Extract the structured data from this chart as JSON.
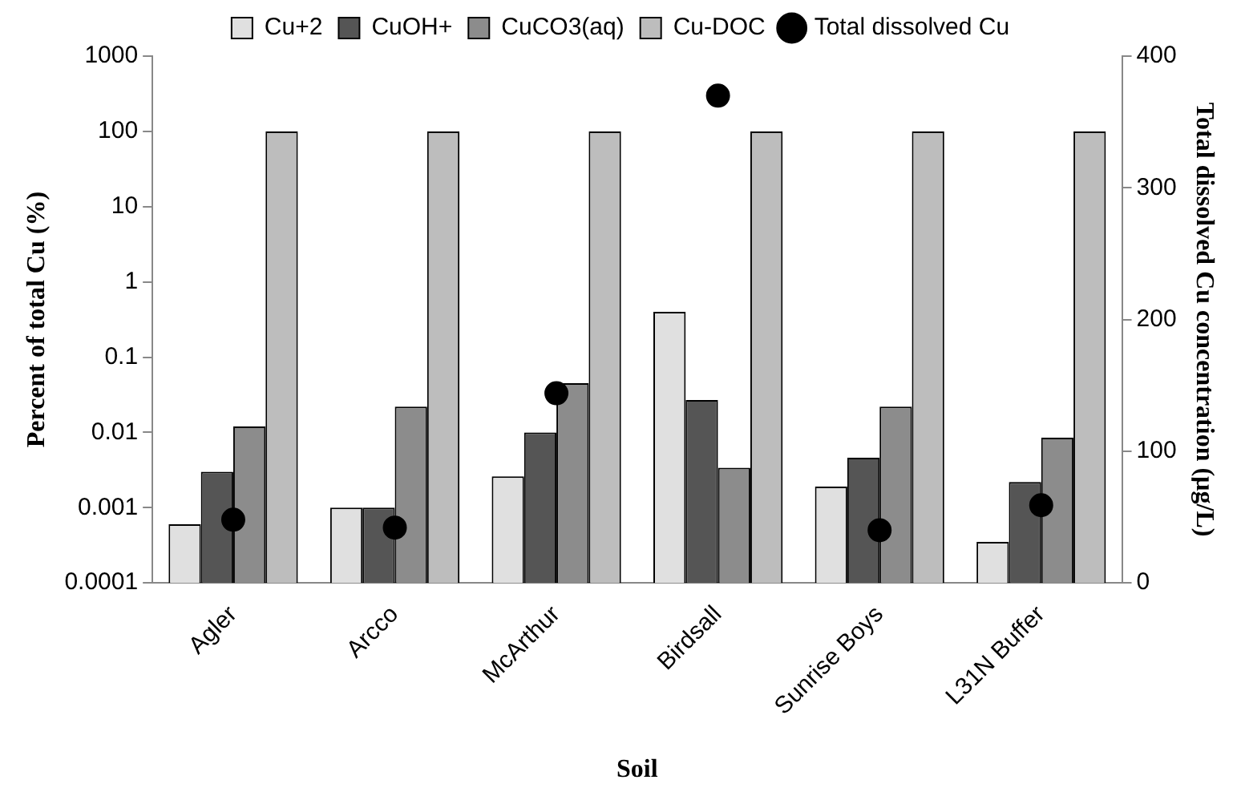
{
  "chart_data": {
    "type": "bar",
    "xlabel": "Soil",
    "ylabel": "Percent of total Cu (%)",
    "y2label": "Total dissolved Cu concentration (µg/L)",
    "categories": [
      "Agler",
      "Arcco",
      "McArthur",
      "Birdsall",
      "Sunrise Boys",
      "L31N Buffer"
    ],
    "series": [
      {
        "name": "Cu+2",
        "color": "#e0e0e0",
        "values": [
          0.0006,
          0.001,
          0.0026,
          0.4,
          0.0019,
          0.00035
        ]
      },
      {
        "name": "CuOH+",
        "color": "#555555",
        "values": [
          0.003,
          0.001,
          0.01,
          0.027,
          0.0046,
          0.0022
        ]
      },
      {
        "name": "CuCO3(aq)",
        "color": "#8c8c8c",
        "values": [
          0.012,
          0.022,
          0.045,
          0.0034,
          0.022,
          0.0085
        ]
      },
      {
        "name": "Cu-DOC",
        "color": "#bdbdbd",
        "values": [
          100,
          100,
          100,
          100,
          100,
          100
        ]
      },
      {
        "name": "Total dissolved Cu",
        "type": "scatter",
        "axis": "y2",
        "marker": "circle",
        "color": "#000000",
        "values": [
          48,
          42,
          144,
          370,
          40,
          59
        ]
      }
    ],
    "log": "y",
    "ylim": [
      0.0001,
      1000
    ],
    "yticks": [
      0.0001,
      0.001,
      0.01,
      0.1,
      1,
      10,
      100,
      1000
    ],
    "y2lim": [
      0,
      400
    ],
    "y2ticks": [
      0,
      100,
      200,
      300,
      400
    ],
    "grid": false,
    "legend": "top"
  }
}
